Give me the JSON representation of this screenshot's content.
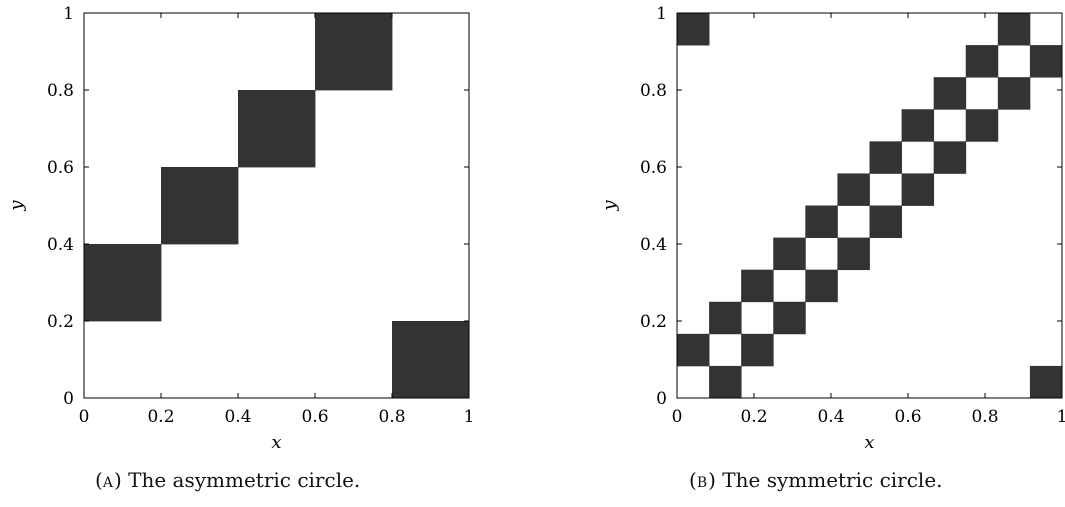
{
  "chart_data": [
    {
      "type": "heatmap",
      "title": "",
      "xlabel": "x",
      "ylabel": "y",
      "xlim": [
        0,
        1
      ],
      "ylim": [
        0,
        1
      ],
      "xticks": [
        "0",
        "0.2",
        "0.4",
        "0.6",
        "0.8",
        "1"
      ],
      "yticks": [
        "0",
        "0.2",
        "0.4",
        "0.6",
        "0.8",
        "1"
      ],
      "grid": false,
      "fill_color": "#333333",
      "cells": [
        {
          "x0": 0.0,
          "x1": 0.2,
          "y0": 0.2,
          "y1": 0.4
        },
        {
          "x0": 0.2,
          "x1": 0.4,
          "y0": 0.4,
          "y1": 0.6
        },
        {
          "x0": 0.4,
          "x1": 0.6,
          "y0": 0.6,
          "y1": 0.8
        },
        {
          "x0": 0.6,
          "x1": 0.8,
          "y0": 0.8,
          "y1": 1.0
        },
        {
          "x0": 0.8,
          "x1": 1.0,
          "y0": 0.0,
          "y1": 0.2
        }
      ]
    },
    {
      "type": "heatmap",
      "title": "",
      "xlabel": "x",
      "ylabel": "y",
      "xlim": [
        0,
        1
      ],
      "ylim": [
        0,
        1
      ],
      "xticks": [
        "0",
        "0.2",
        "0.4",
        "0.6",
        "0.8",
        "1"
      ],
      "yticks": [
        "0",
        "0.2",
        "0.4",
        "0.6",
        "0.8",
        "1"
      ],
      "grid": false,
      "fill_color": "#333333",
      "grid_divisions": 12,
      "cells_index": [
        [
          0,
          11
        ],
        [
          11,
          0
        ],
        [
          0,
          1
        ],
        [
          1,
          0
        ],
        [
          1,
          2
        ],
        [
          2,
          1
        ],
        [
          2,
          3
        ],
        [
          3,
          2
        ],
        [
          3,
          4
        ],
        [
          4,
          3
        ],
        [
          4,
          5
        ],
        [
          5,
          4
        ],
        [
          5,
          6
        ],
        [
          6,
          5
        ],
        [
          6,
          7
        ],
        [
          7,
          6
        ],
        [
          7,
          8
        ],
        [
          8,
          7
        ],
        [
          8,
          9
        ],
        [
          9,
          8
        ],
        [
          9,
          10
        ],
        [
          10,
          9
        ],
        [
          10,
          11
        ],
        [
          11,
          10
        ]
      ]
    }
  ],
  "captions": [
    {
      "letter": "a",
      "text": "The asymmetric circle."
    },
    {
      "letter": "b",
      "text": "The symmetric circle."
    }
  ]
}
